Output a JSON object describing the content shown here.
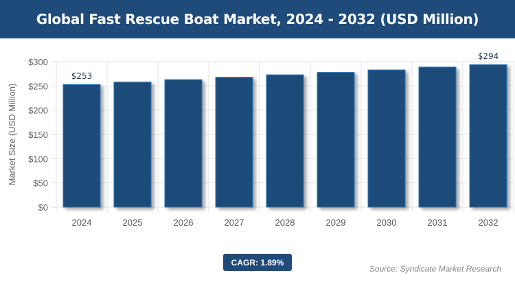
{
  "header": {
    "title": "Global Fast Rescue Boat Market, 2024 - 2032 (USD Million)"
  },
  "colors": {
    "bar": "#1f4b7a",
    "bar_edge": "#2a7ab8",
    "header": "#1f4b7a"
  },
  "chart_data": {
    "type": "bar",
    "title": "Global Fast Rescue Boat Market, 2024 - 2032 (USD Million)",
    "xlabel": "",
    "ylabel": "Market Size (USD Million)",
    "categories": [
      "2024",
      "2025",
      "2026",
      "2027",
      "2028",
      "2029",
      "2030",
      "2031",
      "2032"
    ],
    "values": [
      253,
      258,
      263,
      268,
      273,
      278,
      283,
      289,
      294
    ],
    "data_labels": {
      "2024": "$253",
      "2032": "$294"
    },
    "ylim": [
      0,
      300
    ],
    "yticks": [
      0,
      50,
      100,
      150,
      200,
      250,
      300
    ],
    "ytick_labels": [
      "$0",
      "$50",
      "$100",
      "$150",
      "$200",
      "$250",
      "$300"
    ],
    "grid": true,
    "legend": "none"
  },
  "footer": {
    "cagr": "CAGR: 1.89%",
    "source": "Source: Syndicate Market Research"
  }
}
